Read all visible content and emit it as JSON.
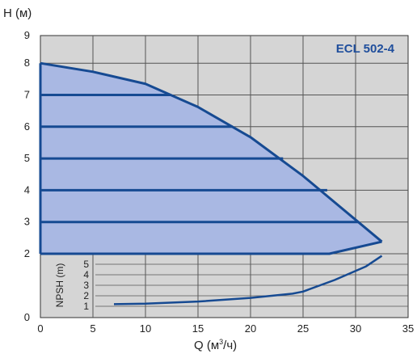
{
  "chart_data": {
    "type": "line",
    "title": "",
    "model": "ECL 502-4",
    "xlabel_prefix": "Q (м",
    "xlabel_sup": "3",
    "xlabel_suffix": "/ч)",
    "ylabel": "H (м)",
    "npsh_label": "NPSH (m)",
    "xlim": [
      0,
      35
    ],
    "ylim": [
      0,
      9
    ],
    "x_ticks": [
      "0",
      "5",
      "10",
      "15",
      "20",
      "25",
      "30",
      "35"
    ],
    "y_ticks": [
      "0",
      "2",
      "3",
      "4",
      "5",
      "6",
      "7",
      "8",
      "9"
    ],
    "npsh_ticks": [
      "1",
      "2",
      "3",
      "4",
      "5"
    ],
    "grid": true,
    "colors": {
      "curve": "#164a92",
      "fill": "#a9b8e3",
      "background": "#d5d5d5",
      "grid": "#555555",
      "label": "#1f4e9c"
    },
    "series": [
      {
        "role": "head_curve",
        "x": [
          0,
          5,
          10,
          15,
          20,
          25,
          30,
          32.5
        ],
        "y": [
          8.0,
          7.73,
          7.35,
          6.62,
          5.67,
          4.45,
          3.07,
          2.38
        ]
      },
      {
        "role": "min_head_line",
        "x": [
          0,
          27.5,
          32.5
        ],
        "y": [
          2.0,
          2.0,
          2.38
        ]
      },
      {
        "role": "operating_lines",
        "segments": [
          {
            "y": 7.0,
            "x_end": 12.4
          },
          {
            "y": 6.0,
            "x_end": 18.3
          },
          {
            "y": 5.0,
            "x_end": 23.1
          },
          {
            "y": 4.0,
            "x_end": 27.3
          },
          {
            "y": 3.0,
            "x_end": 30.3
          }
        ]
      },
      {
        "role": "npsh_curve",
        "x": [
          7,
          10,
          15,
          20,
          24,
          25,
          28,
          31,
          32.5
        ],
        "y": [
          1.2,
          1.25,
          1.45,
          1.8,
          2.2,
          2.4,
          3.5,
          4.8,
          5.8
        ]
      }
    ]
  }
}
